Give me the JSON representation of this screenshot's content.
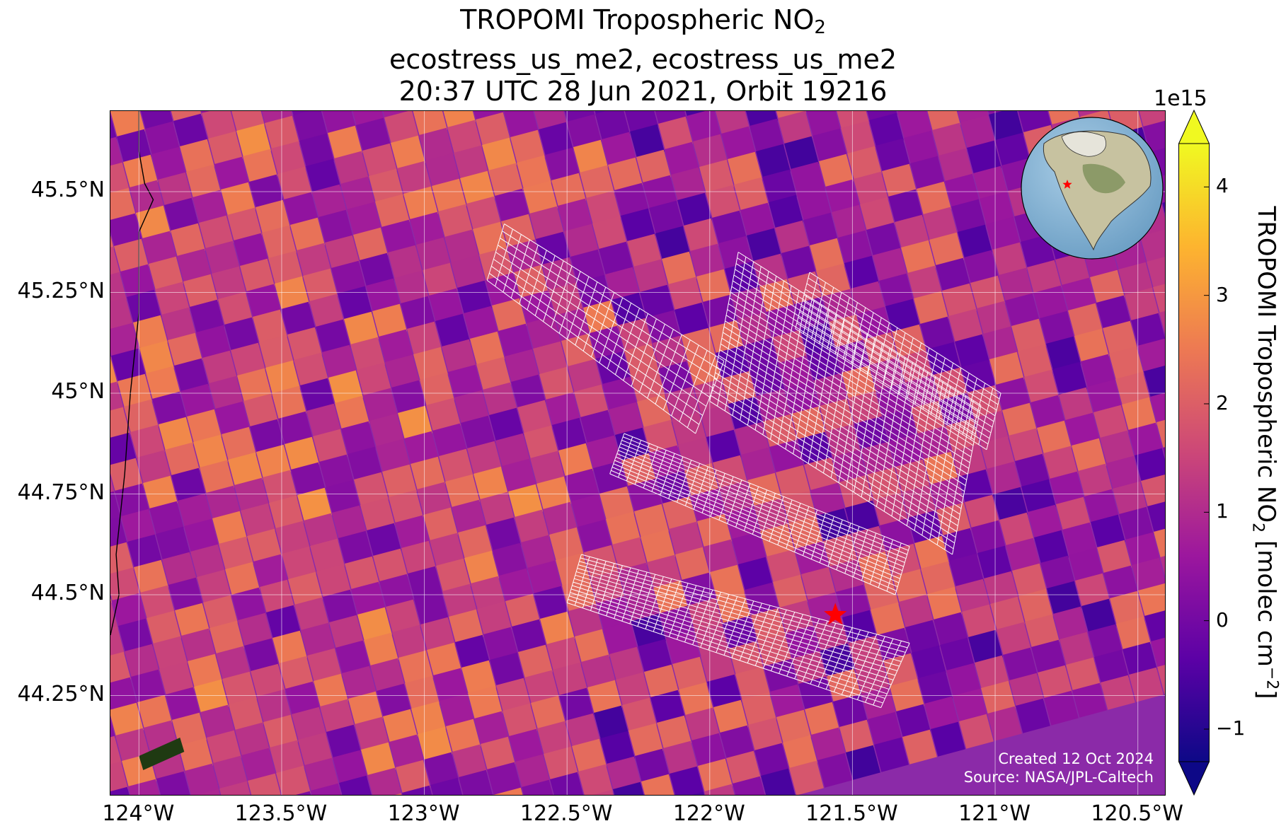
{
  "title": {
    "line1_prefix": "TROPOMI Tropospheric NO",
    "line1_subscript": "2",
    "line2": "ecostress_us_me2, ecostress_us_me2",
    "line3": "20:37 UTC 28 Jun 2021, Orbit 19216"
  },
  "map": {
    "lon_range": [
      -124.1,
      -120.4
    ],
    "lat_range": [
      44.0,
      45.7
    ],
    "lon_ticks": [
      "124°W",
      "123.5°W",
      "123°W",
      "122.5°W",
      "122°W",
      "121.5°W",
      "121°W",
      "120.5°W"
    ],
    "lat_ticks": [
      "45.5°N",
      "45.25°N",
      "45°N",
      "44.75°N",
      "44.5°N",
      "44.25°N"
    ],
    "gridlines": true,
    "site_marker": {
      "lon": -121.56,
      "lat": 44.45,
      "symbol": "star",
      "color": "#ff0000"
    },
    "swath_outline_color": "#ffffff",
    "inset_globe_marker_color": "#ff0000"
  },
  "credit": {
    "created": "Created 12 Oct 2024",
    "source": "Source: NASA/JPL-Caltech"
  },
  "colorbar": {
    "exponent_label": "1e15",
    "title_prefix": "TROPOMI Tropospheric NO",
    "title_subscript": "2",
    "title_middle": " [molec cm",
    "title_superscript": "−2",
    "title_suffix": "]",
    "ticks": [
      "4",
      "3",
      "2",
      "1",
      "0",
      "−1"
    ],
    "tick_values": [
      4,
      3,
      2,
      1,
      0,
      -1
    ],
    "range": [
      -1.3,
      4.4
    ],
    "colormap": [
      "#0d0887",
      "#5c01a6",
      "#9c179e",
      "#cc4778",
      "#ed7953",
      "#fdb42f",
      "#f0f921"
    ],
    "extend": "both"
  }
}
